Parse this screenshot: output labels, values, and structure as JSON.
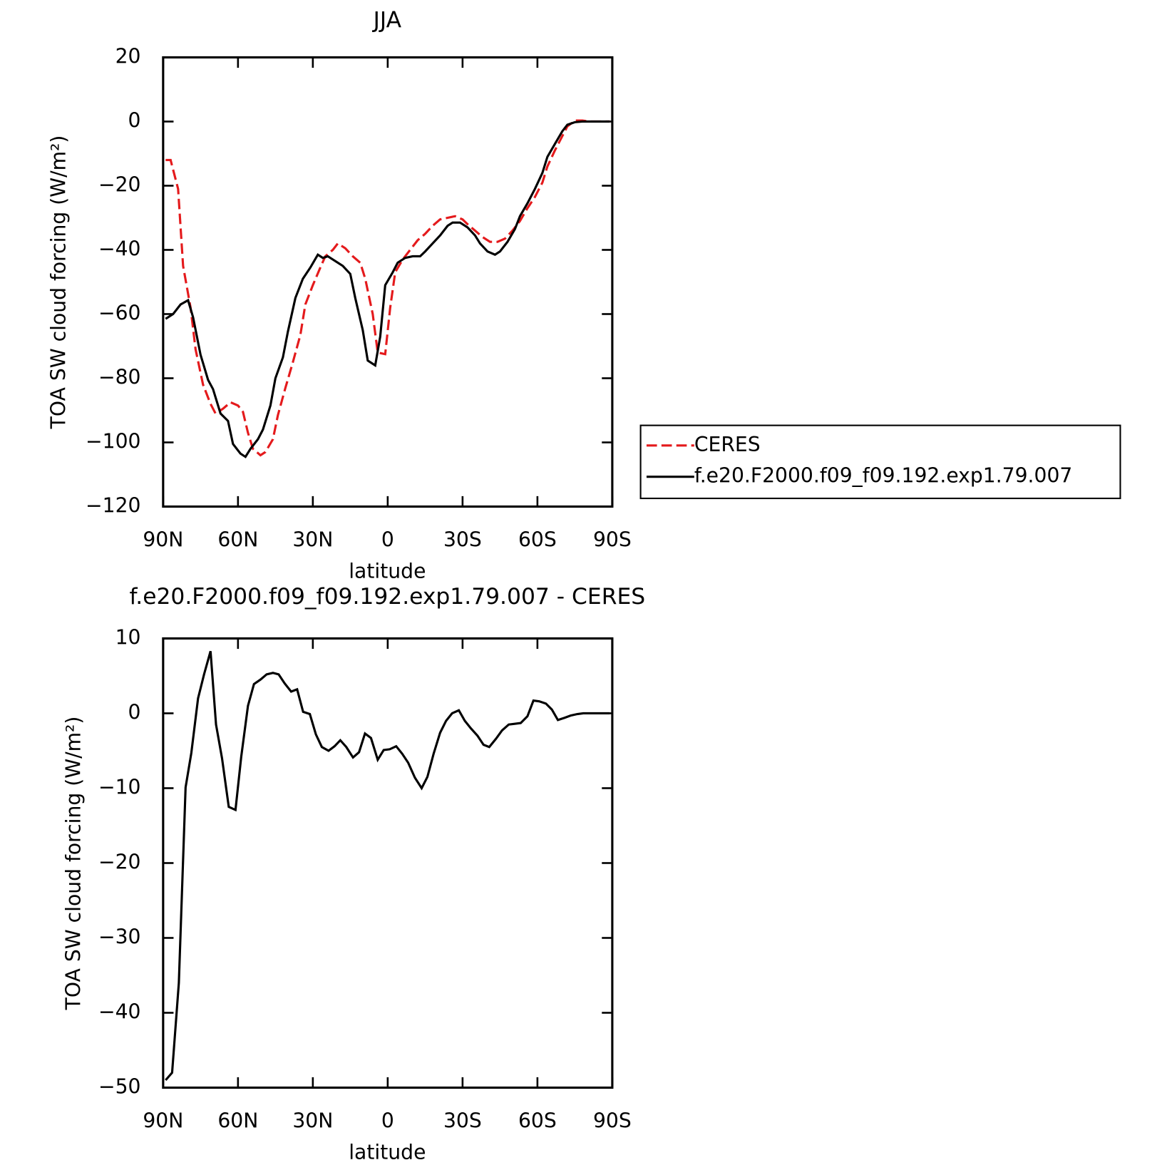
{
  "chart_data": [
    {
      "type": "line",
      "title": "JJA",
      "xlabel": "latitude",
      "ylabel": "TOA SW cloud forcing (W/m²)",
      "xlim": [
        90,
        -90
      ],
      "ylim": [
        -120,
        20
      ],
      "xticks": [
        {
          "value": 90,
          "label": "90N"
        },
        {
          "value": 60,
          "label": "60N"
        },
        {
          "value": 30,
          "label": "30N"
        },
        0,
        {
          "value": -30,
          "label": "30S"
        },
        {
          "value": -60,
          "label": "60S"
        },
        {
          "value": -90,
          "label": "90S"
        }
      ],
      "yticks": [
        20,
        0,
        {
          "value": -20,
          "label": "−20"
        },
        {
          "value": -40,
          "label": "−40"
        },
        {
          "value": -60,
          "label": "−60"
        },
        {
          "value": -80,
          "label": "−80"
        },
        {
          "value": -100,
          "label": "−100"
        },
        {
          "value": -120,
          "label": "−120"
        }
      ],
      "legend": "right",
      "series": [
        {
          "name": "CERES",
          "color": "#e41a1c",
          "dash": true,
          "x": [
            89,
            87,
            84,
            82,
            79,
            77,
            74,
            71,
            69,
            66,
            63,
            60,
            58,
            56,
            54,
            51,
            49,
            46,
            44,
            41,
            38,
            35,
            33,
            30,
            27,
            25,
            22,
            20,
            17,
            14,
            11,
            9,
            6,
            4,
            1,
            -1,
            -3,
            -6,
            -9,
            -12,
            -15,
            -18,
            -21,
            -24,
            -27,
            -30,
            -32,
            -35,
            -38,
            -41,
            -44,
            -47,
            -50,
            -53,
            -56,
            -59,
            -62,
            -64,
            -67,
            -70,
            -72,
            -75,
            -78,
            -81,
            -84,
            -87,
            -89
          ],
          "values": [
            -12,
            -12,
            -21,
            -45,
            -58,
            -71,
            -82,
            -88,
            -91,
            -89.5,
            -87.5,
            -88.5,
            -90.5,
            -97,
            -102,
            -104,
            -103,
            -99,
            -91.5,
            -83,
            -75,
            -66.5,
            -57,
            -51,
            -45.5,
            -42,
            -40,
            -38,
            -39.5,
            -42,
            -44,
            -49,
            -60,
            -72,
            -72.5,
            -58,
            -47,
            -43,
            -40,
            -37,
            -35,
            -32.5,
            -30.5,
            -30,
            -29.5,
            -30.5,
            -32,
            -34,
            -36,
            -37.5,
            -37.5,
            -36.5,
            -34,
            -31,
            -27,
            -23.5,
            -19,
            -14,
            -9,
            -4.5,
            -1.5,
            0.3,
            0.3,
            0,
            0,
            0,
            0
          ]
        },
        {
          "name": "f.e20.F2000.f09_f09.192.exp1.79.007",
          "color": "#000000",
          "dash": false,
          "x": [
            89,
            86,
            83,
            80,
            78,
            75,
            72,
            70,
            67,
            64,
            62,
            59,
            57,
            55,
            52,
            50,
            47,
            45,
            42,
            40,
            37,
            34,
            31,
            28,
            26,
            24,
            21,
            18,
            15,
            13,
            10,
            8,
            5,
            3,
            1,
            -2,
            -4,
            -7,
            -10,
            -13,
            -15,
            -18,
            -21,
            -24,
            -26,
            -29,
            -32,
            -35,
            -37,
            -40,
            -43,
            -45,
            -48,
            -51,
            -53,
            -56,
            -59,
            -62,
            -64,
            -67,
            -70,
            -72,
            -75,
            -78,
            -81,
            -84,
            -87,
            -89
          ],
          "values": [
            -61.5,
            -60,
            -57,
            -55.7,
            -61,
            -72.7,
            -80.5,
            -83.4,
            -91,
            -93.3,
            -100.5,
            -103.5,
            -104.5,
            -102,
            -99,
            -96,
            -88.5,
            -80,
            -73.5,
            -65.5,
            -55,
            -49,
            -45.5,
            -41.5,
            -42.5,
            -42,
            -43.5,
            -45,
            -47.5,
            -55,
            -65,
            -74.5,
            -76,
            -67,
            -51,
            -47,
            -44,
            -42.5,
            -42,
            -42,
            -40.5,
            -38,
            -35.5,
            -32.5,
            -31.5,
            -31.5,
            -33,
            -35.5,
            -38,
            -40.5,
            -41.5,
            -40.5,
            -37.5,
            -33.5,
            -29.5,
            -25.5,
            -21,
            -16,
            -11,
            -7,
            -3,
            -1,
            -0.2,
            0,
            0,
            0,
            0,
            0
          ]
        }
      ]
    },
    {
      "type": "line",
      "title": "f.e20.F2000.f09_f09.192.exp1.79.007 - CERES",
      "xlabel": "latitude",
      "ylabel": "TOA SW cloud forcing (W/m²)",
      "xlim": [
        90,
        -90
      ],
      "ylim": [
        -50,
        10
      ],
      "xticks": [
        {
          "value": 90,
          "label": "90N"
        },
        {
          "value": 60,
          "label": "60N"
        },
        {
          "value": 30,
          "label": "30N"
        },
        0,
        {
          "value": -30,
          "label": "30S"
        },
        {
          "value": -60,
          "label": "60S"
        },
        {
          "value": -90,
          "label": "90S"
        }
      ],
      "yticks": [
        10,
        0,
        {
          "value": -10,
          "label": "−10"
        },
        {
          "value": -20,
          "label": "−20"
        },
        {
          "value": -30,
          "label": "−30"
        },
        {
          "value": -40,
          "label": "−40"
        },
        {
          "value": -50,
          "label": "−50"
        }
      ],
      "series": [
        {
          "color": "#000000",
          "dash": false,
          "x": [
            89,
            86.4,
            83.7,
            81,
            78.7,
            76,
            73.6,
            71,
            68.8,
            66.4,
            63.7,
            61,
            58.7,
            56,
            53.6,
            51,
            48.5,
            46,
            43.7,
            41.3,
            38.7,
            36.3,
            33.9,
            31.2,
            28.8,
            26.4,
            23.7,
            21.3,
            19,
            16.6,
            13.9,
            11.5,
            9.1,
            6.7,
            4,
            1.6,
            -0.8,
            -3.4,
            -5.8,
            -8.2,
            -10.9,
            -13.6,
            -15.9,
            -18.4,
            -21,
            -23.4,
            -25.8,
            -28.5,
            -30.9,
            -33.3,
            -36,
            -38.4,
            -40.7,
            -43.4,
            -45.8,
            -48.5,
            -50.9,
            -53.3,
            -56,
            -58.4,
            -60.7,
            -63.4,
            -65.8,
            -68.2,
            -70.9,
            -73.3,
            -76,
            -78.4,
            -82,
            -86,
            -89
          ],
          "values": [
            -49,
            -48,
            -36,
            -9.9,
            -5.3,
            2,
            5.2,
            8.3,
            -1.5,
            -6,
            -12.5,
            -12.9,
            -5.8,
            1,
            3.9,
            4.5,
            5.2,
            5.4,
            5.2,
            4,
            2.9,
            3.2,
            0.2,
            -0.1,
            -2.8,
            -4.5,
            -5,
            -4.4,
            -3.6,
            -4.5,
            -5.9,
            -5.2,
            -2.7,
            -3.3,
            -6.2,
            -4.9,
            -4.8,
            -4.4,
            -5.4,
            -6.6,
            -8.6,
            -10,
            -8.5,
            -5.4,
            -2.6,
            -1,
            0,
            0.4,
            -1,
            -2,
            -3,
            -4.2,
            -4.5,
            -3.4,
            -2.3,
            -1.5,
            -1.4,
            -1.3,
            -0.4,
            1.7,
            1.6,
            1.3,
            0.5,
            -0.9,
            -0.6,
            -0.3,
            -0.1,
            0,
            0,
            0,
            0
          ]
        }
      ]
    }
  ]
}
